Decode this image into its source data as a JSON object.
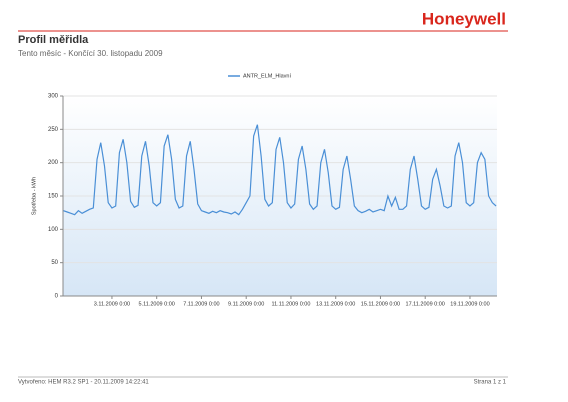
{
  "header": {
    "logo": "Honeywell",
    "title": "Profil měřidla",
    "subtitle": "Tento měsíc - Končící 30. listopadu 2009"
  },
  "footer": {
    "left": "Vytvořeno: HEM R3.2 SP1 - 20.11.2009 14:22:41",
    "right": "Strana 1 z 1"
  },
  "chart_data": {
    "type": "line",
    "ylabel": "Spotřeba - kWh",
    "grid": true,
    "legend": "top",
    "xlim": [
      "2009-10-31T19:30",
      "2009-11-20T05:00"
    ],
    "ylim": [
      0,
      300
    ],
    "yticks": [
      0,
      50,
      100,
      150,
      200,
      250,
      300
    ],
    "xticks": [
      {
        "value": "2009-11-03T00:00",
        "label": "3.11.2009 0:00"
      },
      {
        "value": "2009-11-05T00:00",
        "label": "5.11.2009 0:00"
      },
      {
        "value": "2009-11-07T00:00",
        "label": "7.11.2009 0:00"
      },
      {
        "value": "2009-11-09T00:00",
        "label": "9.11.2009 0:00"
      },
      {
        "value": "2009-11-11T00:00",
        "label": "11.11.2009 0:00"
      },
      {
        "value": "2009-11-13T00:00",
        "label": "13.11.2009 0:00"
      },
      {
        "value": "2009-11-15T00:00",
        "label": "15.11.2009 0:00"
      },
      {
        "value": "2009-11-17T00:00",
        "label": "17.11.2009 0:00"
      },
      {
        "value": "2009-11-19T00:00",
        "label": "19.11.2009 0:00"
      }
    ],
    "x": [
      "2009-10-31T20:00",
      "2009-11-01T00:00",
      "2009-11-01T04:00",
      "2009-11-01T08:00",
      "2009-11-01T12:00",
      "2009-11-01T16:00",
      "2009-11-01T20:00",
      "2009-11-02T00:00",
      "2009-11-02T04:00",
      "2009-11-02T08:00",
      "2009-11-02T12:00",
      "2009-11-02T16:00",
      "2009-11-02T20:00",
      "2009-11-03T00:00",
      "2009-11-03T04:00",
      "2009-11-03T08:00",
      "2009-11-03T12:00",
      "2009-11-03T16:00",
      "2009-11-03T20:00",
      "2009-11-04T00:00",
      "2009-11-04T04:00",
      "2009-11-04T08:00",
      "2009-11-04T12:00",
      "2009-11-04T16:00",
      "2009-11-04T20:00",
      "2009-11-05T00:00",
      "2009-11-05T04:00",
      "2009-11-05T08:00",
      "2009-11-05T12:00",
      "2009-11-05T16:00",
      "2009-11-05T20:00",
      "2009-11-06T00:00",
      "2009-11-06T04:00",
      "2009-11-06T08:00",
      "2009-11-06T12:00",
      "2009-11-06T16:00",
      "2009-11-06T20:00",
      "2009-11-07T00:00",
      "2009-11-07T04:00",
      "2009-11-07T08:00",
      "2009-11-07T12:00",
      "2009-11-07T16:00",
      "2009-11-07T20:00",
      "2009-11-08T00:00",
      "2009-11-08T04:00",
      "2009-11-08T08:00",
      "2009-11-08T12:00",
      "2009-11-08T16:00",
      "2009-11-08T20:00",
      "2009-11-09T00:00",
      "2009-11-09T04:00",
      "2009-11-09T08:00",
      "2009-11-09T12:00",
      "2009-11-09T16:00",
      "2009-11-09T20:00",
      "2009-11-10T00:00",
      "2009-11-10T04:00",
      "2009-11-10T08:00",
      "2009-11-10T12:00",
      "2009-11-10T16:00",
      "2009-11-10T20:00",
      "2009-11-11T00:00",
      "2009-11-11T04:00",
      "2009-11-11T08:00",
      "2009-11-11T12:00",
      "2009-11-11T16:00",
      "2009-11-11T20:00",
      "2009-11-12T00:00",
      "2009-11-12T04:00",
      "2009-11-12T08:00",
      "2009-11-12T12:00",
      "2009-11-12T16:00",
      "2009-11-12T20:00",
      "2009-11-13T00:00",
      "2009-11-13T04:00",
      "2009-11-13T08:00",
      "2009-11-13T12:00",
      "2009-11-13T16:00",
      "2009-11-13T20:00",
      "2009-11-14T00:00",
      "2009-11-14T04:00",
      "2009-11-14T08:00",
      "2009-11-14T12:00",
      "2009-11-14T16:00",
      "2009-11-14T20:00",
      "2009-11-15T00:00",
      "2009-11-15T04:00",
      "2009-11-15T08:00",
      "2009-11-15T12:00",
      "2009-11-15T16:00",
      "2009-11-15T20:00",
      "2009-11-16T00:00",
      "2009-11-16T04:00",
      "2009-11-16T08:00",
      "2009-11-16T12:00",
      "2009-11-16T16:00",
      "2009-11-16T20:00",
      "2009-11-17T00:00",
      "2009-11-17T04:00",
      "2009-11-17T08:00",
      "2009-11-17T12:00",
      "2009-11-17T16:00",
      "2009-11-17T20:00",
      "2009-11-18T00:00",
      "2009-11-18T04:00",
      "2009-11-18T08:00",
      "2009-11-18T12:00",
      "2009-11-18T16:00",
      "2009-11-18T20:00",
      "2009-11-19T00:00",
      "2009-11-19T04:00",
      "2009-11-19T08:00",
      "2009-11-19T12:00",
      "2009-11-19T16:00",
      "2009-11-19T20:00",
      "2009-11-20T00:00",
      "2009-11-20T04:00"
    ],
    "series": [
      {
        "name": "ANTR_ELM_Hlavní",
        "color": "#4a8fd6",
        "values": [
          128,
          126,
          124,
          122,
          128,
          124,
          127,
          130,
          132,
          205,
          230,
          195,
          140,
          132,
          135,
          215,
          235,
          200,
          142,
          133,
          136,
          210,
          232,
          195,
          140,
          135,
          140,
          225,
          242,
          205,
          145,
          132,
          135,
          210,
          232,
          190,
          138,
          128,
          126,
          124,
          127,
          125,
          128,
          126,
          125,
          123,
          126,
          122,
          130,
          140,
          150,
          240,
          257,
          210,
          145,
          135,
          140,
          220,
          238,
          200,
          140,
          132,
          138,
          205,
          225,
          190,
          138,
          130,
          135,
          200,
          220,
          185,
          135,
          130,
          133,
          190,
          210,
          175,
          135,
          128,
          125,
          127,
          130,
          126,
          128,
          130,
          128,
          150,
          135,
          148,
          130,
          130,
          135,
          190,
          210,
          175,
          135,
          130,
          133,
          175,
          190,
          165,
          135,
          132,
          135,
          210,
          230,
          200,
          140,
          135,
          140,
          200,
          215,
          205,
          150,
          140,
          135
        ]
      }
    ]
  }
}
